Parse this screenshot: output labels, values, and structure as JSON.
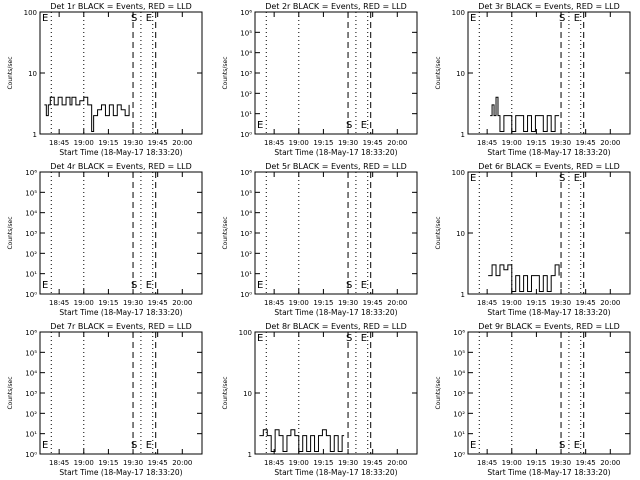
{
  "chart_data": [
    {
      "type": "line",
      "title": "Det 1r BLACK = Events, RED = LLD",
      "xlabel": "Start Time (18-May-17 18:33:20)",
      "ylabel": "Counts/sec",
      "ylog": true,
      "ylim": [
        1,
        100
      ],
      "yticks": [
        "1",
        "10",
        "100"
      ],
      "xticks": [
        "18:45",
        "19:00",
        "19:15",
        "19:30",
        "19:45",
        "20:00"
      ],
      "markers": {
        "start": "S",
        "end": "E"
      },
      "series": [
        {
          "color": "#000000",
          "x": [
            18.6,
            18.62,
            18.64,
            18.66,
            18.7,
            18.74,
            18.78,
            18.82,
            18.86,
            18.88,
            18.92,
            18.96,
            19.0,
            19.04,
            19.08,
            19.1,
            19.14,
            19.18,
            19.22,
            19.26,
            19.3,
            19.34,
            19.38,
            19.42,
            19.46
          ],
          "y": [
            3,
            2,
            3,
            4,
            3,
            4,
            3,
            4,
            3,
            4,
            3,
            3.5,
            4,
            3,
            1.1,
            2,
            2.5,
            3,
            2,
            3,
            2,
            3,
            2.5,
            2,
            3
          ]
        }
      ]
    },
    {
      "type": "line",
      "title": "Det 2r BLACK = Events, RED = LLD",
      "xlabel": "Start Time (18-May-17 18:33:20)",
      "ylabel": "Counts/sec",
      "ylog": true,
      "ylim": [
        1,
        1000000
      ],
      "yticks": [
        "10⁰",
        "10¹",
        "10²",
        "10³",
        "10⁴",
        "10⁵",
        "10⁶"
      ],
      "xticks": [
        "18:45",
        "19:00",
        "19:15",
        "19:30",
        "19:45",
        "20:00"
      ],
      "markers": {
        "start": "S",
        "end": "E"
      },
      "series": []
    },
    {
      "type": "line",
      "title": "Det 3r BLACK = Events, RED = LLD",
      "xlabel": "Start Time (18-May-17 18:33:20)",
      "ylabel": "Counts/sec",
      "ylog": true,
      "ylim": [
        1,
        100
      ],
      "yticks": [
        "1",
        "10",
        "100"
      ],
      "xticks": [
        "18:45",
        "19:00",
        "19:15",
        "19:30",
        "19:45",
        "20:00"
      ],
      "markers": {
        "start": "S",
        "end": "E"
      },
      "series": [
        {
          "color": "#000000",
          "x": [
            18.78,
            18.8,
            18.82,
            18.84,
            18.86,
            18.88,
            18.92,
            18.96,
            19.0,
            19.04,
            19.08,
            19.12,
            19.16,
            19.2,
            19.24,
            19.28,
            19.32,
            19.36,
            19.4,
            19.44,
            19.48
          ],
          "y": [
            2,
            3,
            2,
            4,
            2,
            1.1,
            2,
            2,
            1.1,
            2,
            2,
            1.1,
            2,
            1.1,
            2,
            2,
            1.1,
            2,
            1.1,
            2,
            2
          ]
        }
      ]
    },
    {
      "type": "line",
      "title": "Det 4r BLACK = Events, RED = LLD",
      "xlabel": "Start Time (18-May-17 18:33:20)",
      "ylabel": "Counts/sec",
      "ylog": true,
      "ylim": [
        1,
        1000000
      ],
      "yticks": [
        "10⁰",
        "10¹",
        "10²",
        "10³",
        "10⁴",
        "10⁵",
        "10⁶"
      ],
      "xticks": [
        "18:45",
        "19:00",
        "19:15",
        "19:30",
        "19:45",
        "20:00"
      ],
      "markers": {
        "start": "S",
        "end": "E"
      },
      "series": []
    },
    {
      "type": "line",
      "title": "Det 5r BLACK = Events, RED = LLD",
      "xlabel": "Start Time (18-May-17 18:33:20)",
      "ylabel": "Counts/sec",
      "ylog": true,
      "ylim": [
        1,
        1000000
      ],
      "yticks": [
        "10⁰",
        "10¹",
        "10²",
        "10³",
        "10⁴",
        "10⁵",
        "10⁶"
      ],
      "xticks": [
        "18:45",
        "19:00",
        "19:15",
        "19:30",
        "19:45",
        "20:00"
      ],
      "markers": {
        "start": "S",
        "end": "E"
      },
      "series": []
    },
    {
      "type": "line",
      "title": "Det 6r BLACK = Events, RED = LLD",
      "xlabel": "Start Time (18-May-17 18:33:20)",
      "ylabel": "Counts/sec",
      "ylog": true,
      "ylim": [
        1,
        100
      ],
      "yticks": [
        "1",
        "10",
        "100"
      ],
      "xticks": [
        "18:45",
        "19:00",
        "19:15",
        "19:30",
        "19:45",
        "20:00"
      ],
      "markers": {
        "start": "S",
        "end": "E"
      },
      "series": [
        {
          "color": "#000000",
          "x": [
            18.76,
            18.8,
            18.84,
            18.88,
            18.92,
            18.96,
            19.0,
            19.04,
            19.08,
            19.12,
            19.16,
            19.2,
            19.24,
            19.28,
            19.32,
            19.36,
            19.4,
            19.44,
            19.48
          ],
          "y": [
            2,
            3,
            2,
            3,
            2.5,
            3,
            1.1,
            2,
            1.1,
            2,
            1.1,
            2,
            2,
            1.1,
            2,
            1.1,
            2,
            3,
            2
          ]
        }
      ]
    },
    {
      "type": "line",
      "title": "Det 7r BLACK = Events, RED = LLD",
      "xlabel": "Start Time (18-May-17 18:33:20)",
      "ylabel": "Counts/sec",
      "ylog": true,
      "ylim": [
        1,
        1000000
      ],
      "yticks": [
        "10⁰",
        "10¹",
        "10²",
        "10³",
        "10⁴",
        "10⁵",
        "10⁶"
      ],
      "xticks": [
        "18:45",
        "19:00",
        "19:15",
        "19:30",
        "19:45",
        "20:00"
      ],
      "markers": {
        "start": "S",
        "end": "E"
      },
      "series": []
    },
    {
      "type": "line",
      "title": "Det 8r BLACK = Events, RED = LLD",
      "xlabel": "Start Time (18-May-17 18:33:20)",
      "ylabel": "Counts/sec",
      "ylog": true,
      "ylim": [
        1,
        100
      ],
      "yticks": [
        "1",
        "10",
        "100"
      ],
      "xticks": [
        "18:45",
        "19:00",
        "19:15",
        "19:30",
        "19:45",
        "20:00"
      ],
      "markers": {
        "start": "S",
        "end": "E"
      },
      "series": [
        {
          "color": "#000000",
          "x": [
            18.6,
            18.64,
            18.68,
            18.72,
            18.76,
            18.8,
            18.84,
            18.88,
            18.92,
            18.96,
            19.0,
            19.04,
            19.08,
            19.12,
            19.16,
            19.2,
            19.24,
            19.28,
            19.32,
            19.36,
            19.4,
            19.44,
            19.46
          ],
          "y": [
            2,
            2.5,
            2,
            1.1,
            2.5,
            2,
            1.1,
            2,
            2.5,
            2,
            1.1,
            2,
            1.1,
            2,
            1.1,
            2,
            2.5,
            2,
            1.1,
            2,
            1.1,
            2,
            2
          ]
        }
      ]
    },
    {
      "type": "line",
      "title": "Det 9r BLACK = Events, RED = LLD",
      "xlabel": "Start Time (18-May-17 18:33:20)",
      "ylabel": "Counts/sec",
      "ylog": true,
      "ylim": [
        1,
        1000000
      ],
      "yticks": [
        "10⁰",
        "10¹",
        "10²",
        "10³",
        "10⁴",
        "10⁵",
        "10⁶"
      ],
      "xticks": [
        "18:45",
        "19:00",
        "19:15",
        "19:30",
        "19:45",
        "20:00"
      ],
      "markers": {
        "start": "S",
        "end": "E"
      },
      "series": []
    }
  ]
}
